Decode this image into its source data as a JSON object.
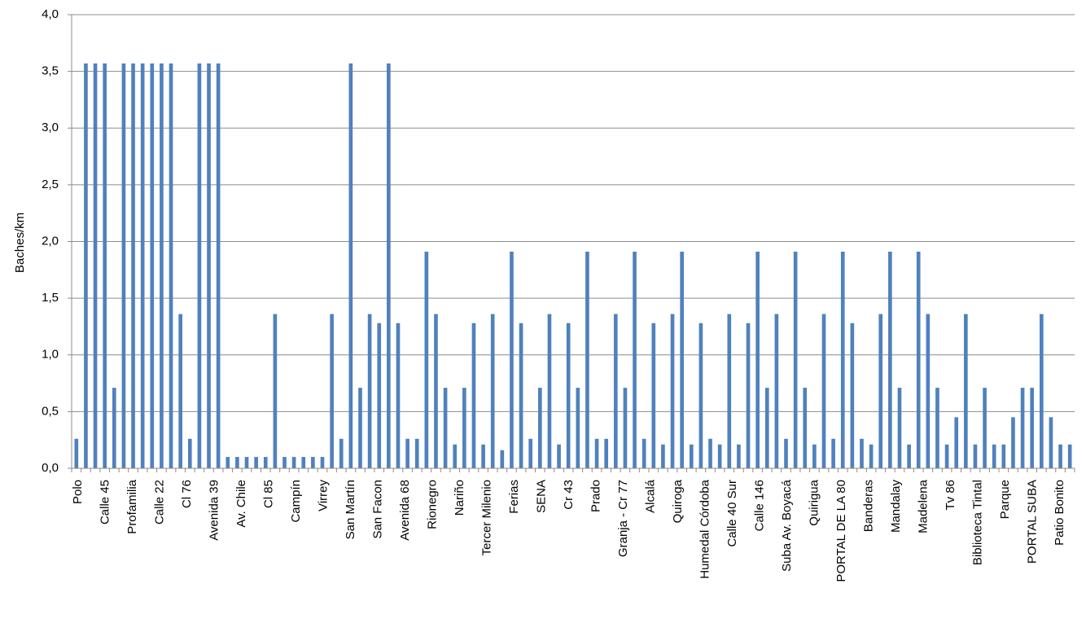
{
  "chart_data": {
    "type": "bar",
    "title": "",
    "xlabel": "",
    "ylabel": "Baches/km",
    "ylim": [
      0,
      4
    ],
    "ytick_step": 0.5,
    "ytick_labels": [
      "0,0",
      "0,5",
      "1,0",
      "1,5",
      "2,0",
      "2,5",
      "3,0",
      "3,5",
      "4,0"
    ],
    "grid": true,
    "legend": "none",
    "bar_color": "#4f81bd",
    "xtick_labels": [
      "Polo",
      "Calle 45",
      "Profamilia",
      "Calle 22",
      "Cl 76",
      "Avenida 39",
      "Av. Chile",
      "Cl 85",
      "Campín",
      "Virrey",
      "San Martín",
      "San Facon",
      "Avenida 68",
      "Rionegro",
      "Nariño",
      "Tercer Milenio",
      "Ferias",
      "SENA",
      "Cr 43",
      "Prado",
      "Granja - Cr 77",
      "Alcalá",
      "Quiroga",
      "Humedal Córdoba",
      "Calle 40 Sur",
      "Calle 146",
      "Suba Av. Boyacá",
      "Quirigua",
      "PORTAL DE LA 80",
      "Banderas",
      "Mandalay",
      "Madelena",
      "Tv 86",
      "Biblioteca Tintal",
      "Parque",
      "PORTAL SUBA",
      "Patio Bonito"
    ],
    "values": [
      0.26,
      3.57,
      3.57,
      3.57,
      0.71,
      3.57,
      3.57,
      3.57,
      3.57,
      3.57,
      3.57,
      1.36,
      0.26,
      3.57,
      3.57,
      3.57,
      0.1,
      0.1,
      0.1,
      0.1,
      0.1,
      1.36,
      0.1,
      0.1,
      0.1,
      0.1,
      0.1,
      1.36,
      0.26,
      3.57,
      0.71,
      1.36,
      1.28,
      3.57,
      1.28,
      0.26,
      0.26,
      1.91,
      1.36,
      0.71,
      0.21,
      0.71,
      1.28,
      0.21,
      1.36,
      0.16,
      1.91,
      1.28,
      0.26,
      0.71,
      1.36,
      0.21,
      1.28,
      0.71,
      1.91,
      0.26,
      0.26,
      1.36,
      0.71,
      1.91,
      0.26,
      1.28,
      0.21,
      1.36,
      1.91,
      0.21,
      1.28,
      0.26,
      0.21,
      1.36,
      0.21,
      1.28,
      1.91,
      0.71,
      1.36,
      0.26,
      1.91,
      0.71,
      0.21,
      1.36,
      0.26,
      1.91,
      1.28,
      0.26,
      0.21,
      1.36,
      1.91,
      0.71,
      0.21,
      1.91,
      1.36,
      0.71,
      0.21,
      0.45,
      1.36,
      0.21,
      0.71,
      0.21,
      0.21,
      0.45,
      0.71,
      0.71,
      1.36,
      0.45,
      0.21,
      0.21
    ]
  }
}
